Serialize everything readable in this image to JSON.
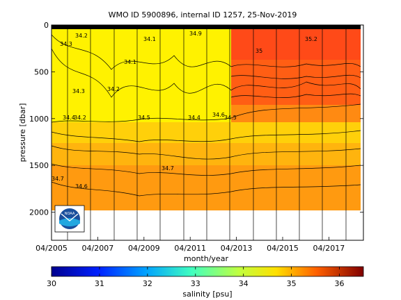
{
  "chart_data": {
    "type": "heatmap",
    "title": "WMO ID 5900896, internal ID 1257, 25-Nov-2019",
    "xlabel": "month/year",
    "ylabel": "pressure [dbar]",
    "x_ticks": [
      "04/2005",
      "04/2007",
      "04/2009",
      "04/2011",
      "04/2013",
      "04/2015",
      "04/2017"
    ],
    "y_ticks": [
      "0",
      "500",
      "1000",
      "1500",
      "2000"
    ],
    "ylim": [
      0,
      2300
    ],
    "y_reversed": true,
    "colorbar": {
      "label": "salinity [psu]",
      "range": [
        30,
        36.5
      ],
      "ticks": [
        "30",
        "31",
        "32",
        "33",
        "34",
        "35",
        "36"
      ]
    },
    "salinity_layers": [
      {
        "pressure_from": 0,
        "pressure_to": 1000,
        "salinity_before_2013": 34.2,
        "salinity_after_2013": 35.1
      },
      {
        "pressure_from": 1000,
        "pressure_to": 1200,
        "salinity": 34.45
      },
      {
        "pressure_from": 1200,
        "pressure_to": 1500,
        "salinity": 34.6
      },
      {
        "pressure_from": 1500,
        "pressure_to": 2000,
        "salinity": 34.85
      }
    ],
    "contour_labels": [
      "34.2",
      "34.3",
      "34.2",
      "34.1",
      "34.4",
      "34.2",
      "34.5",
      "34.6",
      "34.5",
      "34.3",
      "34.4",
      "34.7",
      "34.6",
      "34.7",
      "35",
      "35.2",
      "34.9",
      "34.1"
    ],
    "logo": "NOAA"
  }
}
